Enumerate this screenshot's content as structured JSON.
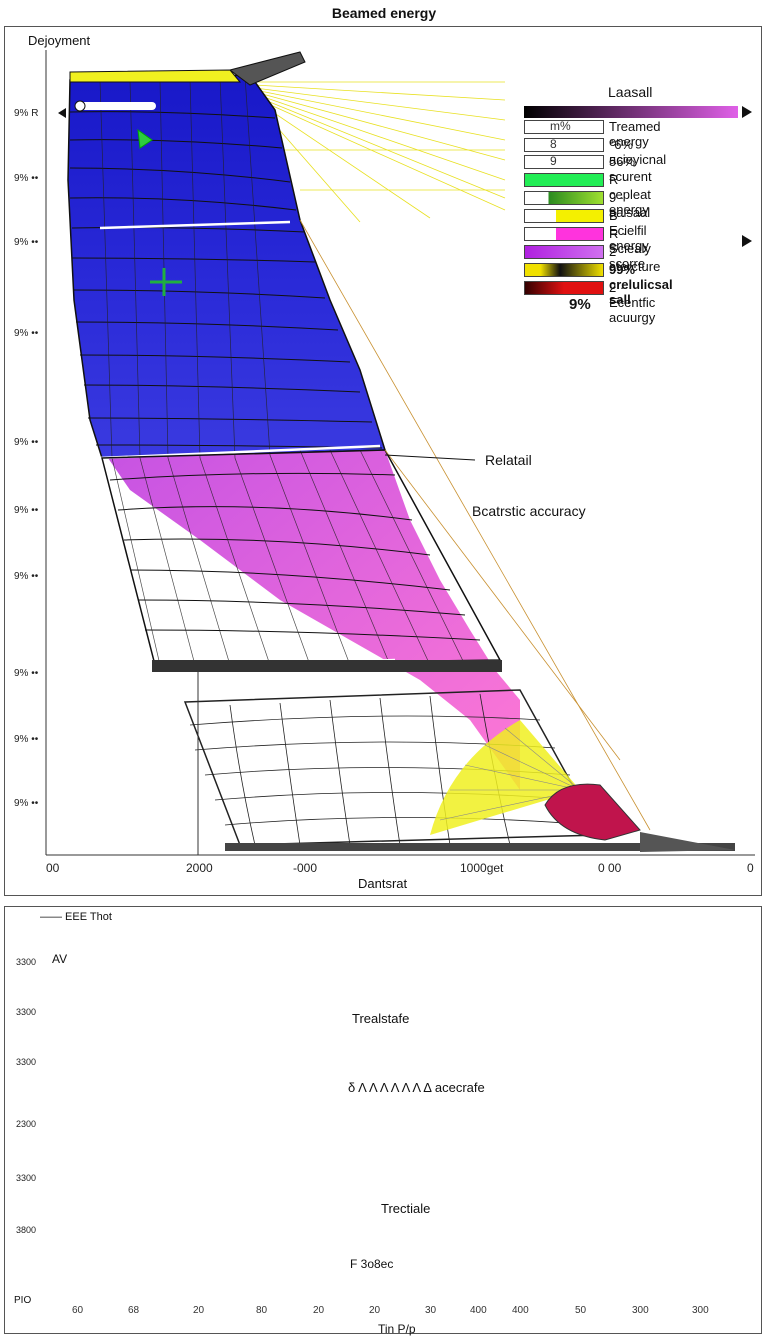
{
  "title": "Beamed energy",
  "top_chart": {
    "ylabel": "Dejoyment",
    "y_ticks": [
      "9% R",
      "9% ••",
      "9% ••",
      "9% ••",
      "9% ••",
      "9% ••",
      "9% ••",
      "9% ••",
      "9% ••",
      "9% ••"
    ],
    "x_ticks": [
      "00",
      "2000",
      "-000",
      "1000get",
      "0 00",
      "0"
    ],
    "xlabel": "Dantsrat",
    "legend": {
      "title": "Laasall",
      "rows": [
        {
          "num": "m%",
          "label": "Treamed energy",
          "color": "#ffffff"
        },
        {
          "num": "8",
          "label": "°6% acieyicnal",
          "color": "#ffffff"
        },
        {
          "num": "9",
          "label": "56% scurent",
          "color": "#ffffff"
        },
        {
          "num": "",
          "label": "R · cepleat energy",
          "color": "#22ee55"
        },
        {
          "num": "",
          "label": "9 · aaisaal",
          "color": "#9fe030"
        },
        {
          "num": "",
          "label": "B · Ecielfil energy",
          "color": "#f4f000"
        },
        {
          "num": "",
          "label": "R · Sciealy scorre",
          "color": "#ff33dd"
        },
        {
          "num": "",
          "label": "2 · atercture",
          "color": "#b020e0"
        },
        {
          "num": "",
          "label": "99% crelulicsal sall",
          "color": "#f0e000"
        },
        {
          "num": "",
          "label": "2 · Ecentfic acuurgy",
          "color": "#e01010"
        }
      ],
      "pct": "9%"
    },
    "annotations": {
      "relatail": "Relatail",
      "beat": "Bcatrstic accuracy"
    }
  },
  "bottom_chart": {
    "title": "—— EEE Thot",
    "top_left": "AV",
    "y_ticks": [
      "3300",
      "3300",
      "3300",
      "2300",
      "3300",
      "3800"
    ],
    "ylabel": "PIO",
    "x_ticks": [
      "60",
      "68",
      "20",
      "80",
      "20",
      "20",
      "30",
      "400",
      "400",
      "50",
      "300",
      "300"
    ],
    "xlabel": "Tin P/p",
    "annotations": {
      "a1": "Trealstafe",
      "a2": "δ Λ Λ Λ Λ Λ Λ Δ acecrafe",
      "a3": "Trectiale",
      "a4": "F 3o8ec"
    }
  },
  "colors": {
    "blue": "#1f1fd0",
    "magenta": "#d63ad8",
    "yellow": "#eeee20",
    "crimson": "#c0144c",
    "grid": "#222222"
  }
}
